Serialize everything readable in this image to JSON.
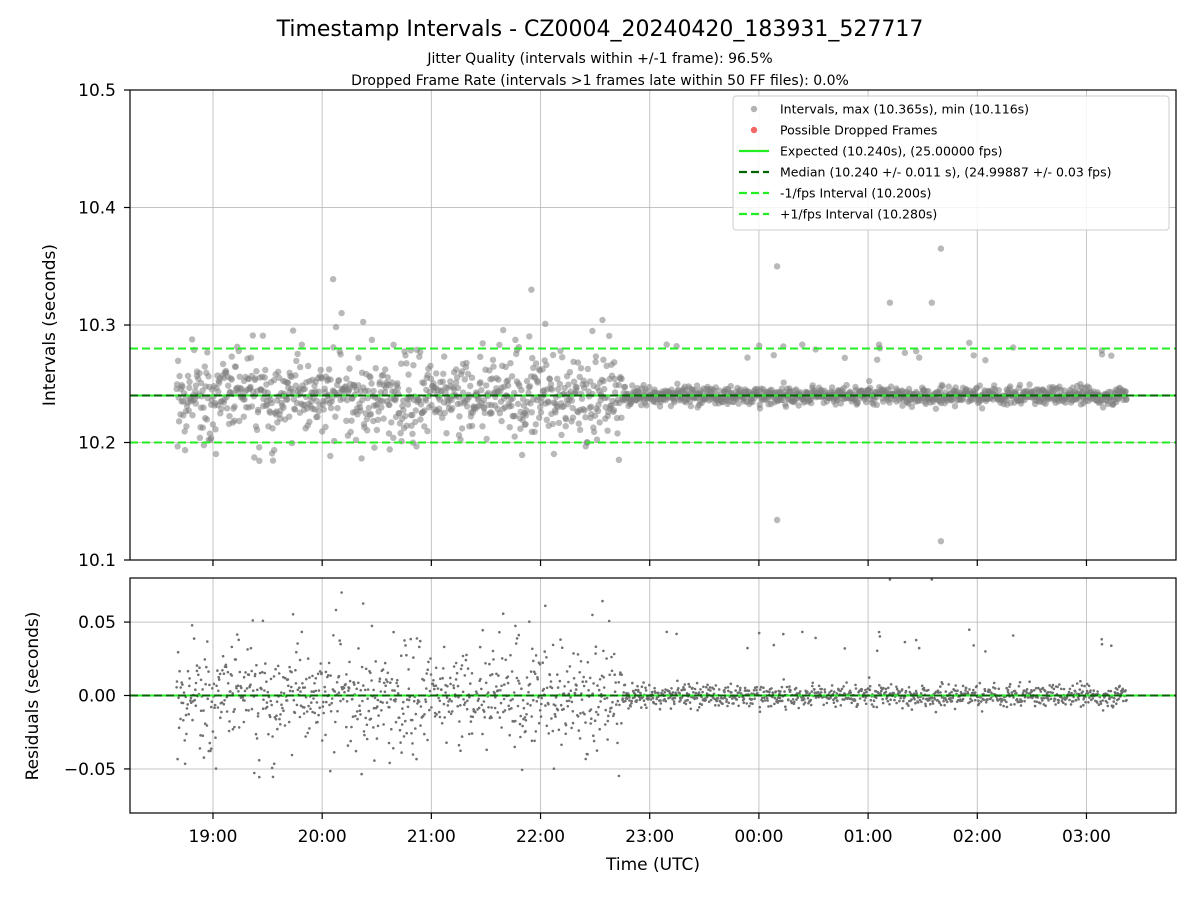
{
  "header": {
    "title": "Timestamp Intervals - CZ0004_20240420_183931_527717",
    "subtitle1": "Jitter Quality (intervals within +/-1 frame): 96.5%",
    "subtitle2": "Dropped Frame Rate (intervals >1 frames late within 50 FF files): 0.0%"
  },
  "chart_data": [
    {
      "type": "scatter",
      "ylabel": "Intervals (seconds)",
      "ylim": [
        10.1,
        10.5
      ],
      "yticks": [
        "10.1",
        "10.2",
        "10.3",
        "10.4",
        "10.5"
      ],
      "xlim_hours": [
        18.24,
        27.82
      ],
      "grid": true,
      "legend_position": "top-right",
      "legend": [
        "Intervals, max (10.365s), min (10.116s)",
        "Possible Dropped Frames",
        "Expected (10.240s), (25.00000 fps)",
        "Median (10.240 +/- 0.011 s), (24.99887 +/- 0.03 fps)",
        "-1/fps Interval (10.200s)",
        "+1/fps Interval (10.280s)"
      ],
      "reference_lines": {
        "expected": 10.24,
        "median": 10.24,
        "minus_one_frame": 10.2,
        "plus_one_frame": 10.28
      },
      "series_summary": {
        "count_approx": 2600,
        "time_start": "18:40",
        "time_end": "03:22",
        "max": 10.365,
        "min": 10.116,
        "std_before_2245": 0.025,
        "std_after_2245": 0.004
      },
      "notable_points": [
        {
          "x": "20:06",
          "y": 10.339
        },
        {
          "x": "21:55",
          "y": 10.33
        },
        {
          "x": "00:10",
          "y": 10.35
        },
        {
          "x": "00:10",
          "y": 10.134
        },
        {
          "x": "01:12",
          "y": 10.319
        },
        {
          "x": "01:35",
          "y": 10.319
        },
        {
          "x": "01:40",
          "y": 10.365
        },
        {
          "x": "01:40",
          "y": 10.116
        }
      ]
    },
    {
      "type": "scatter",
      "ylabel": "Residuals (seconds)",
      "xlabel": "Time (UTC)",
      "ylim": [
        -0.08,
        0.08
      ],
      "yticks": [
        "−0.05",
        "0.00",
        "0.05"
      ],
      "xticks": [
        "19:00",
        "20:00",
        "21:00",
        "22:00",
        "23:00",
        "00:00",
        "01:00",
        "02:00",
        "03:00"
      ],
      "reference_lines": {
        "zero": 0.0
      },
      "grid": true
    }
  ],
  "colors": {
    "points": "#808080",
    "dropped": "#f04040",
    "expected": "#22ee22",
    "median": "#006400",
    "bounds": "#22ee22",
    "grid": "#b0b0b0"
  }
}
